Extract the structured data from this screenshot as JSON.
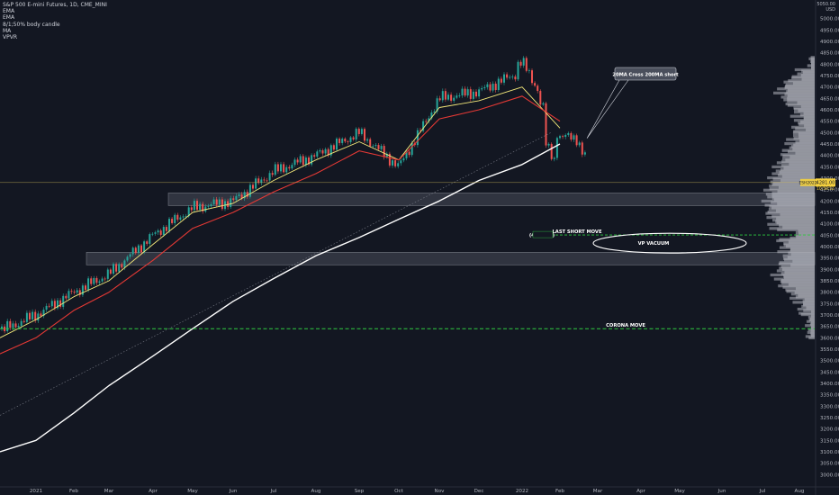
{
  "legend": {
    "symbol": "S&P 500 E-mini Futures, 1D, CME_MINI",
    "indicators": [
      "EMA",
      "EMA",
      "8/1;50% body candle",
      "MA",
      "VPVR"
    ]
  },
  "axis": {
    "currency": "USD",
    "currency_top": "5050.00"
  },
  "price_tags": {
    "current": "4281.00",
    "current_sub": "10:59:51",
    "left_tag": "ESH2022"
  },
  "annotations": {
    "callout": "20MA Cross 200MA short",
    "last_short_move": "LAST SHORT MOVE",
    "last_short_level": "(4051.00)",
    "vp_vacuum": "VP VACUUM",
    "corona_move": "CORONA MOVE"
  },
  "colors": {
    "background": "#131722",
    "up_candle": "#26a69a",
    "down_candle": "#ef5350",
    "ema_fast": "#f4e97a",
    "ema_slow": "#e53935",
    "ma_200": "#ffffff",
    "support_line": "#2ecc40",
    "zone": "#9aa0ac"
  },
  "chart_data": {
    "type": "line",
    "title": "S&P 500 E-mini Futures, 1D, CME_MINI",
    "xlabel": "",
    "ylabel": "",
    "ylim": [
      2950,
      5050
    ],
    "x_ticks": [
      "2021",
      "Feb",
      "Mar",
      "Apr",
      "May",
      "Jun",
      "Jul",
      "Aug",
      "Sep",
      "Oct",
      "Nov",
      "Dec",
      "2022",
      "Feb",
      "Mar",
      "Apr",
      "May",
      "Jun",
      "Jul",
      "Aug"
    ],
    "y_ticks": [
      3000,
      3050,
      3100,
      3150,
      3200,
      3250,
      3300,
      3350,
      3400,
      3450,
      3500,
      3550,
      3600,
      3650,
      3700,
      3750,
      3800,
      3850,
      3900,
      3950,
      4000,
      4050,
      4100,
      4150,
      4200,
      4250,
      4300,
      4350,
      4400,
      4450,
      4500,
      4550,
      4600,
      4650,
      4700,
      4750,
      4800,
      4850,
      4900,
      4950,
      5000
    ],
    "series": [
      {
        "name": "Price",
        "x": [
          "2021",
          "Feb",
          "Mar",
          "Apr",
          "May",
          "Jun",
          "Jul",
          "Aug",
          "Sep",
          "Oct",
          "Nov",
          "Dec",
          "2022",
          "Feb"
        ],
        "values": [
          3700,
          3800,
          3880,
          4050,
          4170,
          4200,
          4330,
          4400,
          4500,
          4350,
          4650,
          4680,
          4770,
          4480
        ]
      },
      {
        "name": "EMA",
        "x": [
          "2021",
          "Feb",
          "Mar",
          "Apr",
          "May",
          "Jun",
          "Jul",
          "Aug",
          "Sep",
          "Oct",
          "Nov",
          "Dec",
          "2022",
          "Feb"
        ],
        "values": [
          3680,
          3780,
          3850,
          4010,
          4150,
          4190,
          4290,
          4380,
          4460,
          4380,
          4610,
          4640,
          4700,
          4520
        ]
      },
      {
        "name": "EMA",
        "x": [
          "2021",
          "Feb",
          "Mar",
          "Apr",
          "May",
          "Jun",
          "Jul",
          "Aug",
          "Sep",
          "Oct",
          "Nov",
          "Dec",
          "2022",
          "Feb"
        ],
        "values": [
          3600,
          3720,
          3800,
          3940,
          4080,
          4150,
          4240,
          4320,
          4420,
          4380,
          4560,
          4600,
          4660,
          4550
        ]
      },
      {
        "name": "MA",
        "x": [
          "2021",
          "Feb",
          "Mar",
          "Apr",
          "May",
          "Jun",
          "Jul",
          "Aug",
          "Sep",
          "Oct",
          "Nov",
          "Dec",
          "2022",
          "Feb"
        ],
        "values": [
          3150,
          3270,
          3390,
          3520,
          3640,
          3760,
          3860,
          3960,
          4040,
          4120,
          4200,
          4290,
          4360,
          4450
        ]
      }
    ],
    "levels": [
      {
        "label": "LAST SHORT MOVE",
        "value": 4051
      },
      {
        "label": "CORONA MOVE",
        "value": 3640
      },
      {
        "label": "current",
        "value": 4281
      }
    ],
    "zones": [
      {
        "from": 4180,
        "to": 4235
      },
      {
        "from": 3920,
        "to": 3975
      }
    ],
    "grid": false,
    "legend_position": "top-left"
  }
}
